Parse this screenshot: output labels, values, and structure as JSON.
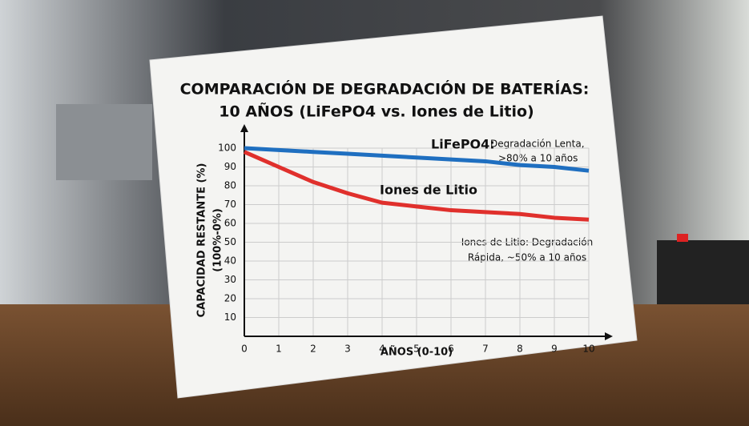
{
  "chart_data": {
    "type": "line",
    "title": [
      "COMPARACIÓN DE DEGRADACIÓN DE BATERÍAS:",
      "10 AÑOS (LiFePO4 vs. Iones de Litio)"
    ],
    "y_label": [
      "CAPACIDAD RESTANTE (%)",
      "(100%-0%)"
    ],
    "x_label": "AÑOS (0-10)",
    "x": [
      0,
      1,
      2,
      3,
      4,
      5,
      6,
      7,
      8,
      9,
      10
    ],
    "series": [
      {
        "name": "LiFePO4:",
        "color": "#1f6fc0",
        "values": [
          100,
          99,
          98,
          97,
          96,
          95,
          94,
          93,
          91,
          90,
          88
        ]
      },
      {
        "name": "Iones de Litio",
        "color": "#e0302c",
        "values": [
          98,
          90,
          82,
          76,
          71,
          69,
          67,
          66,
          65,
          63,
          62
        ]
      }
    ],
    "annotations": [
      [
        "Degradación Lenta,",
        ">80% a 10 años"
      ],
      [
        "Iones de Litio: Degradación",
        "Rápida, ~50% a 10 años"
      ]
    ],
    "xlim": [
      0,
      10
    ],
    "ylim": [
      0,
      100
    ],
    "xticks": [
      0,
      1,
      2,
      3,
      4,
      5,
      6,
      7,
      8,
      9,
      10
    ],
    "yticks": [
      10,
      20,
      30,
      40,
      50,
      60,
      70,
      80,
      90,
      100
    ],
    "grid": true
  }
}
